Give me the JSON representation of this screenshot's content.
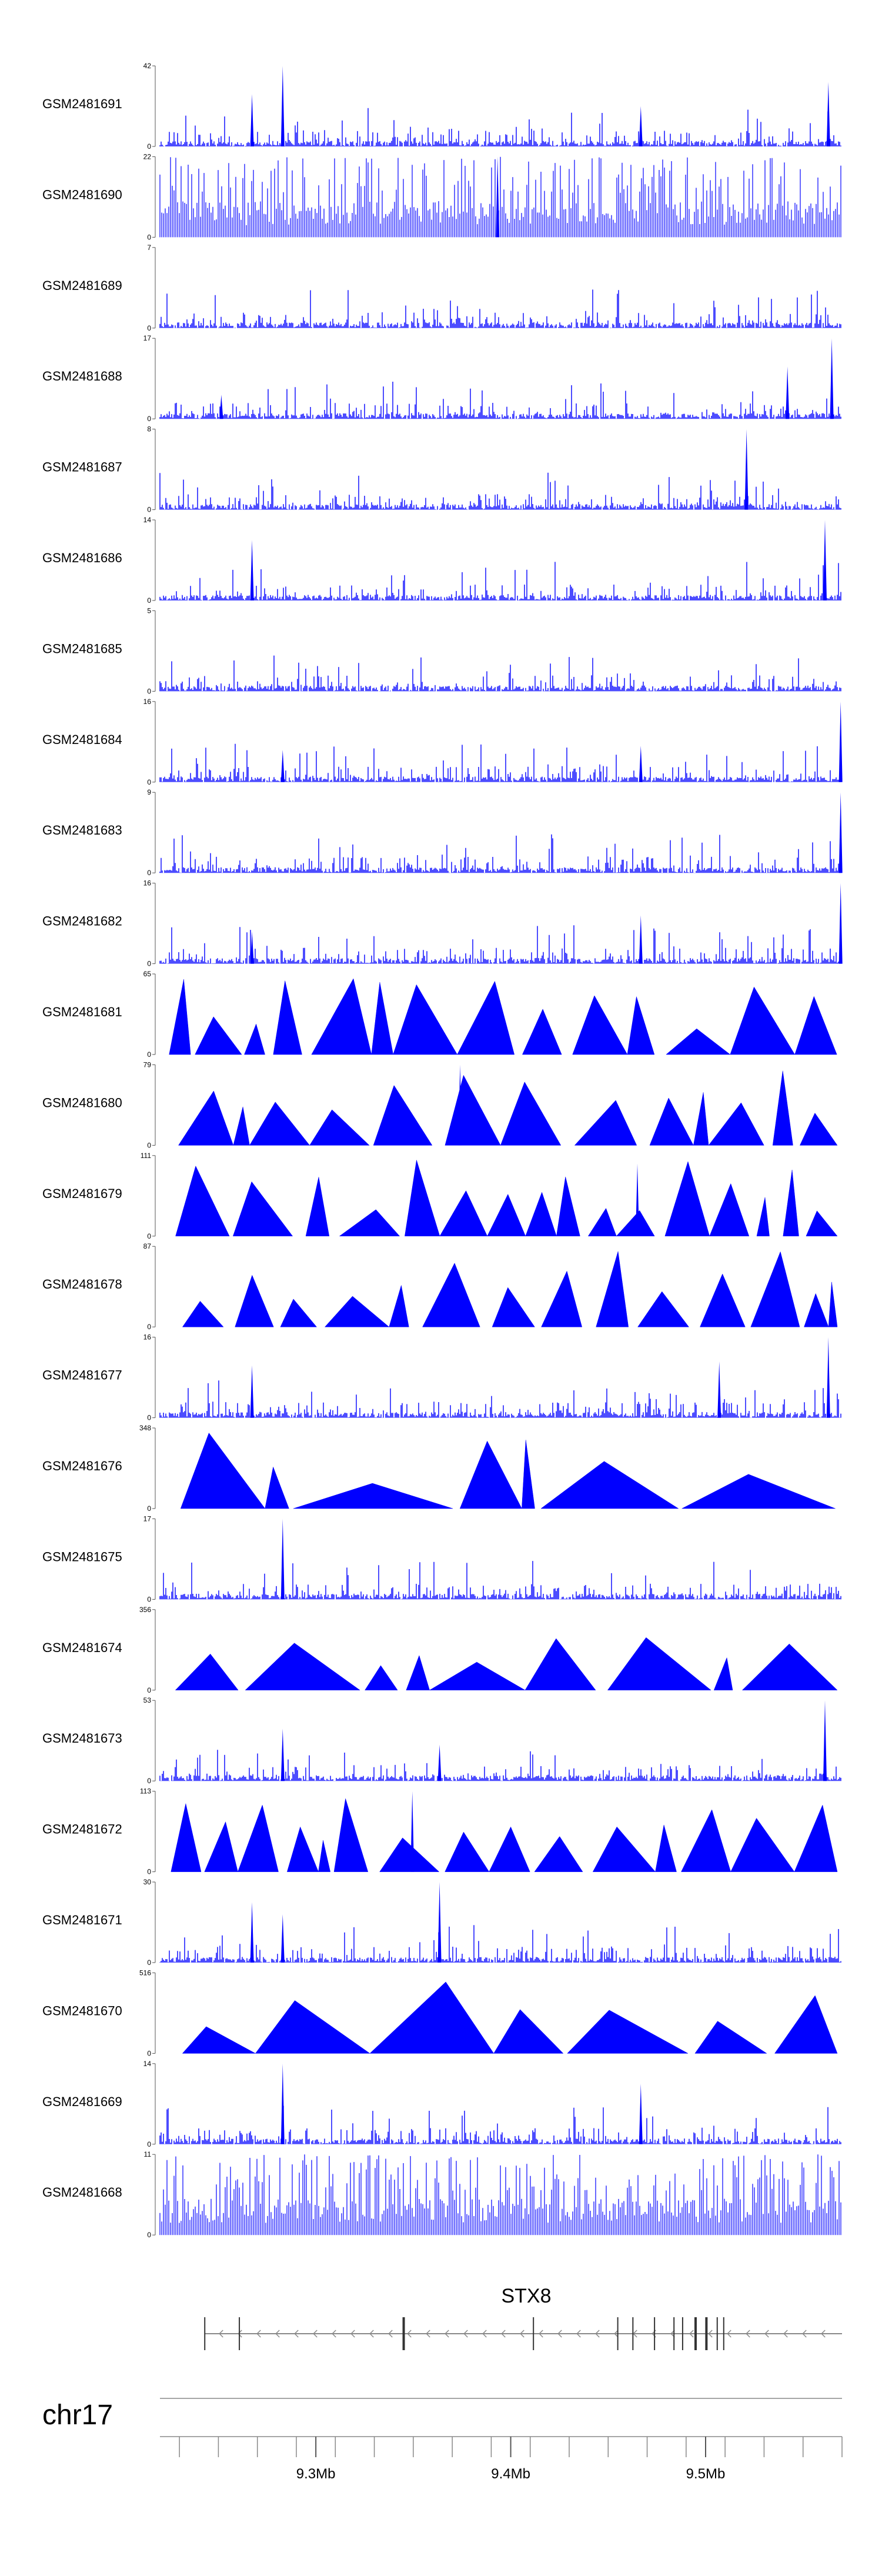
{
  "chart_data": {
    "type": "area",
    "title": "",
    "chromosome": "chr17",
    "region_mb": [
      9.22,
      9.57
    ],
    "fill_color": "#0000ff",
    "tracks": [
      {
        "name": "GSM2481691",
        "ymax": "42",
        "style": "dense",
        "seed": 11,
        "peaks": [
          [
            0.135,
            0.65
          ],
          [
            0.18,
            1.0
          ],
          [
            0.705,
            0.5
          ],
          [
            0.98,
            0.8
          ]
        ]
      },
      {
        "name": "GSM2481690",
        "ymax": "22",
        "style": "spikes",
        "seed": 12,
        "peaks": [
          [
            0.495,
            1.0
          ]
        ]
      },
      {
        "name": "GSM2481689",
        "ymax": "7",
        "style": "dense",
        "seed": 13,
        "peaks": []
      },
      {
        "name": "GSM2481688",
        "ymax": "17",
        "style": "dense",
        "seed": 14,
        "peaks": [
          [
            0.92,
            0.65
          ],
          [
            0.985,
            1.0
          ],
          [
            0.09,
            0.3
          ]
        ]
      },
      {
        "name": "GSM2481687",
        "ymax": "8",
        "style": "dense",
        "seed": 15,
        "peaks": [
          [
            0.86,
            1.0
          ]
        ]
      },
      {
        "name": "GSM2481686",
        "ymax": "14",
        "style": "dense",
        "seed": 16,
        "peaks": [
          [
            0.135,
            0.75
          ],
          [
            0.975,
            1.0
          ]
        ]
      },
      {
        "name": "GSM2481685",
        "ymax": "5",
        "style": "dense",
        "seed": 17,
        "peaks": []
      },
      {
        "name": "GSM2481684",
        "ymax": "16",
        "style": "dense",
        "seed": 18,
        "peaks": [
          [
            0.18,
            0.4
          ],
          [
            0.705,
            0.45
          ],
          [
            0.998,
            1.0
          ]
        ]
      },
      {
        "name": "GSM2481683",
        "ymax": "9",
        "style": "dense",
        "seed": 19,
        "peaks": [
          [
            0.998,
            1.0
          ]
        ]
      },
      {
        "name": "GSM2481682",
        "ymax": "16",
        "style": "dense",
        "seed": 20,
        "peaks": [
          [
            0.135,
            0.4
          ],
          [
            0.705,
            0.6
          ],
          [
            0.998,
            1.0
          ]
        ]
      },
      {
        "name": "GSM2481681",
        "ymax": "65",
        "style": "triangles",
        "seed": 21,
        "peaks": []
      },
      {
        "name": "GSM2481680",
        "ymax": "79",
        "style": "triangles",
        "seed": 22,
        "peaks": [
          [
            0.44,
            1.0
          ]
        ]
      },
      {
        "name": "GSM2481679",
        "ymax": "111",
        "style": "triangles",
        "seed": 23,
        "peaks": [
          [
            0.7,
            0.9
          ]
        ]
      },
      {
        "name": "GSM2481678",
        "ymax": "87",
        "style": "triangles",
        "seed": 24,
        "peaks": []
      },
      {
        "name": "GSM2481677",
        "ymax": "16",
        "style": "dense",
        "seed": 25,
        "peaks": [
          [
            0.135,
            0.65
          ],
          [
            0.82,
            0.7
          ],
          [
            0.98,
            1.0
          ]
        ]
      },
      {
        "name": "GSM2481676",
        "ymax": "348",
        "style": "triangles",
        "seed": 26,
        "peaks": []
      },
      {
        "name": "GSM2481675",
        "ymax": "17",
        "style": "dense",
        "seed": 27,
        "peaks": [
          [
            0.18,
            1.0
          ]
        ]
      },
      {
        "name": "GSM2481674",
        "ymax": "356",
        "style": "triangles",
        "seed": 28,
        "peaks": []
      },
      {
        "name": "GSM2481673",
        "ymax": "53",
        "style": "dense",
        "seed": 29,
        "peaks": [
          [
            0.18,
            0.65
          ],
          [
            0.41,
            0.45
          ],
          [
            0.975,
            1.0
          ]
        ]
      },
      {
        "name": "GSM2481672",
        "ymax": "113",
        "style": "triangles",
        "seed": 30,
        "peaks": [
          [
            0.37,
            1.0
          ]
        ]
      },
      {
        "name": "GSM2481671",
        "ymax": "30",
        "style": "dense",
        "seed": 31,
        "peaks": [
          [
            0.135,
            0.75
          ],
          [
            0.18,
            0.6
          ],
          [
            0.41,
            1.0
          ]
        ]
      },
      {
        "name": "GSM2481670",
        "ymax": "516",
        "style": "triangles",
        "seed": 32,
        "peaks": []
      },
      {
        "name": "GSM2481669",
        "ymax": "14",
        "style": "dense",
        "seed": 33,
        "peaks": [
          [
            0.18,
            1.0
          ],
          [
            0.705,
            0.75
          ]
        ]
      },
      {
        "name": "GSM2481668",
        "ymax": "11",
        "style": "spikes",
        "seed": 34,
        "peaks": []
      }
    ],
    "gene": {
      "name": "STX8",
      "strand": "-",
      "start_mb": 9.243,
      "end_mb": 9.57
    },
    "genome_axis": {
      "tick_labels": [
        "9.3Mb",
        "9.4Mb",
        "9.5Mb"
      ],
      "tick_values_mb": [
        9.3,
        9.4,
        9.5
      ],
      "minor_tick_step_mb": 0.02
    }
  }
}
